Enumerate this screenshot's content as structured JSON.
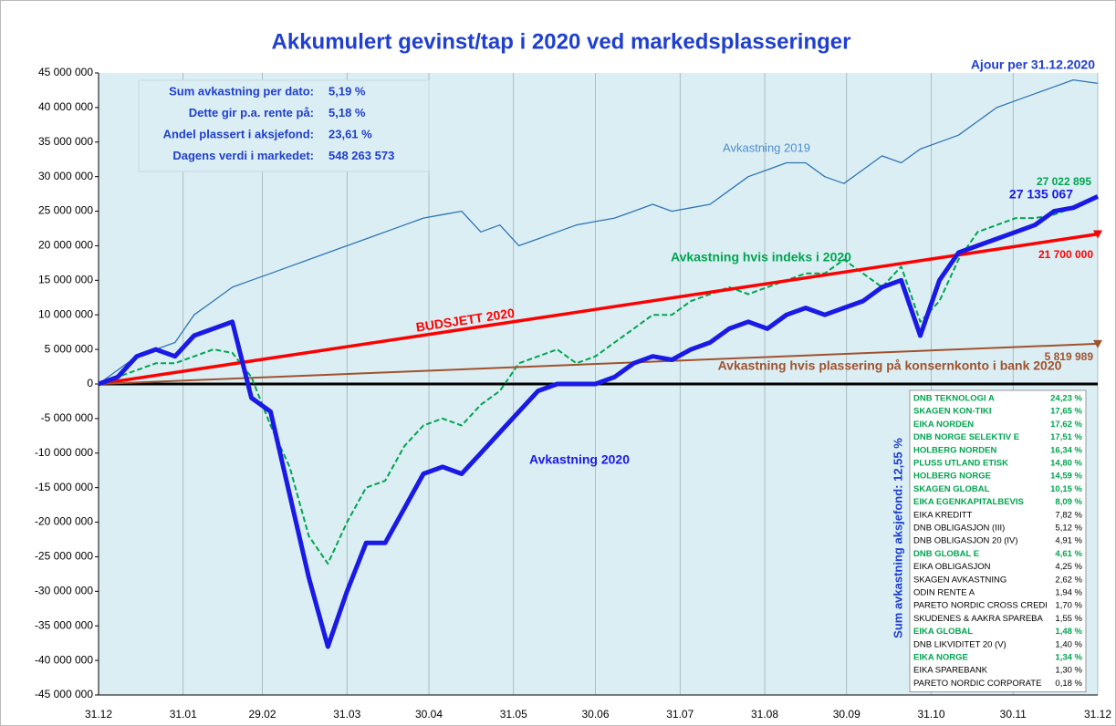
{
  "chart_data": {
    "type": "line",
    "title": "Akkumulert gevinst/tap i 2020 ved markedsplasseringer",
    "subtitle": "Ajour per 31.12.2020",
    "xlim": [
      0,
      366
    ],
    "xticks": [
      {
        "value": 0,
        "label": "31.12"
      },
      {
        "value": 31,
        "label": "31.01"
      },
      {
        "value": 60,
        "label": "29.02"
      },
      {
        "value": 91,
        "label": "31.03"
      },
      {
        "value": 121,
        "label": "30.04"
      },
      {
        "value": 152,
        "label": "31.05"
      },
      {
        "value": 182,
        "label": "30.06"
      },
      {
        "value": 213,
        "label": "31.07"
      },
      {
        "value": 244,
        "label": "31.08"
      },
      {
        "value": 274,
        "label": "30.09"
      },
      {
        "value": 305,
        "label": "31.10"
      },
      {
        "value": 335,
        "label": "30.11"
      },
      {
        "value": 366,
        "label": "31.12"
      }
    ],
    "ylim": [
      -45000000,
      45000000
    ],
    "yticks": [
      {
        "value": -45000000,
        "label": "-45 000 000"
      },
      {
        "value": -40000000,
        "label": "-40 000 000"
      },
      {
        "value": -35000000,
        "label": "-35 000 000"
      },
      {
        "value": -30000000,
        "label": "-30 000 000"
      },
      {
        "value": -25000000,
        "label": "-25 000 000"
      },
      {
        "value": -20000000,
        "label": "-20 000 000"
      },
      {
        "value": -15000000,
        "label": "-15 000 000"
      },
      {
        "value": -10000000,
        "label": "-10 000 000"
      },
      {
        "value": -5000000,
        "label": "-5 000 000"
      },
      0,
      {
        "value": 5000000,
        "label": "5 000 000"
      },
      {
        "value": 10000000,
        "label": "10 000 000"
      },
      {
        "value": 15000000,
        "label": "15 000 000"
      },
      {
        "value": 20000000,
        "label": "20 000 000"
      },
      {
        "value": 25000000,
        "label": "25 000 000"
      },
      {
        "value": 30000000,
        "label": "30 000 000"
      },
      {
        "value": 35000000,
        "label": "35 000 000"
      },
      {
        "value": 40000000,
        "label": "40 000 000"
      },
      {
        "value": 45000000,
        "label": "45 000 000"
      }
    ],
    "grid": "x",
    "x": [
      0,
      7,
      14,
      21,
      28,
      35,
      42,
      49,
      56,
      63,
      70,
      77,
      84,
      91,
      98,
      105,
      112,
      119,
      126,
      133,
      140,
      147,
      154,
      161,
      168,
      175,
      182,
      189,
      196,
      203,
      210,
      217,
      224,
      231,
      238,
      245,
      252,
      259,
      266,
      273,
      280,
      287,
      294,
      301,
      308,
      315,
      322,
      329,
      336,
      343,
      350,
      357,
      366
    ],
    "series": [
      {
        "name": "Avkastning 2019",
        "color": "#2e75b6",
        "values": [
          0,
          2000000,
          4000000,
          5000000,
          6000000,
          10000000,
          12000000,
          14000000,
          15000000,
          16000000,
          17000000,
          18000000,
          19000000,
          20000000,
          21000000,
          22000000,
          23000000,
          24000000,
          24500000,
          25000000,
          22000000,
          23000000,
          20000000,
          21000000,
          22000000,
          23000000,
          23500000,
          24000000,
          25000000,
          26000000,
          25000000,
          25500000,
          26000000,
          28000000,
          30000000,
          31000000,
          32000000,
          32000000,
          30000000,
          29000000,
          31000000,
          33000000,
          32000000,
          34000000,
          35000000,
          36000000,
          38000000,
          40000000,
          41000000,
          42000000,
          43000000,
          44000000,
          43500000
        ]
      },
      {
        "name": "Avkastning hvis indeks i 2020",
        "color": "#00a550",
        "dashed": true,
        "end_label": "27 022 895",
        "values": [
          0,
          1000000,
          2000000,
          3000000,
          3000000,
          4000000,
          5000000,
          4500000,
          1000000,
          -6000000,
          -12000000,
          -22000000,
          -26000000,
          -20000000,
          -15000000,
          -14000000,
          -9000000,
          -6000000,
          -5000000,
          -6000000,
          -3000000,
          -1000000,
          3000000,
          4000000,
          5000000,
          3000000,
          4000000,
          6000000,
          8000000,
          10000000,
          10000000,
          12000000,
          13000000,
          14000000,
          13000000,
          14000000,
          15000000,
          16000000,
          16000000,
          18000000,
          16000000,
          14000000,
          17000000,
          9000000,
          12000000,
          18000000,
          22000000,
          23000000,
          24000000,
          24000000,
          24500000,
          25500000,
          27022895
        ]
      },
      {
        "name": "BUDSJETT 2020",
        "color": "#ff0000",
        "x": [
          0,
          366
        ],
        "values": [
          0,
          21700000
        ],
        "end_label": "21 700 000",
        "marker": "triangle"
      },
      {
        "name": "Avkastning hvis plassering på konsernkonto i bank 2020",
        "color": "#a0522d",
        "x": [
          0,
          366
        ],
        "values": [
          0,
          5819989
        ],
        "end_label": "5 819 989",
        "marker": "triangle"
      },
      {
        "name": "Avkastning 2020",
        "color": "#1a1ae6",
        "end_label": "27 135 067",
        "values": [
          0,
          1000000,
          4000000,
          5000000,
          4000000,
          7000000,
          8000000,
          9000000,
          -2000000,
          -4000000,
          -16000000,
          -28000000,
          -38000000,
          -30000000,
          -23000000,
          -23000000,
          -18000000,
          -13000000,
          -12000000,
          -13000000,
          -10000000,
          -7000000,
          -4000000,
          -1000000,
          0,
          0,
          0,
          1000000,
          3000000,
          4000000,
          3500000,
          5000000,
          6000000,
          8000000,
          9000000,
          8000000,
          10000000,
          11000000,
          10000000,
          11000000,
          12000000,
          14000000,
          15000000,
          7000000,
          15000000,
          19000000,
          20000000,
          21000000,
          22000000,
          23000000,
          25000000,
          25500000,
          27135067
        ]
      }
    ]
  },
  "info_box": [
    {
      "label": "Sum avkastning per dato:",
      "value": "5,19 %"
    },
    {
      "label": "Dette gir p.a. rente på:",
      "value": "5,18 %"
    },
    {
      "label": "Andel plassert i aksjefond:",
      "value": "23,61 %"
    },
    {
      "label": "Dagens verdi i markedet:",
      "value": "548 263 573"
    }
  ],
  "fund_table": {
    "title": "Sum avkastning aksjefond:   12,55 %",
    "rows": [
      {
        "name": "DNB TEKNOLOGI A",
        "value": "24,23 %",
        "highlight": true
      },
      {
        "name": "SKAGEN KON-TIKI",
        "value": "17,65 %",
        "highlight": true
      },
      {
        "name": "EIKA NORDEN",
        "value": "17,62 %",
        "highlight": true
      },
      {
        "name": "DNB NORGE SELEKTIV E",
        "value": "17,51 %",
        "highlight": true
      },
      {
        "name": "HOLBERG NORDEN",
        "value": "16,34 %",
        "highlight": true
      },
      {
        "name": "PLUSS UTLAND ETISK",
        "value": "14,80 %",
        "highlight": true
      },
      {
        "name": "HOLBERG NORGE",
        "value": "14,59 %",
        "highlight": true
      },
      {
        "name": "SKAGEN GLOBAL",
        "value": "10,15 %",
        "highlight": true
      },
      {
        "name": "EIKA EGENKAPITALBEVIS",
        "value": "8,09 %",
        "highlight": true
      },
      {
        "name": "EIKA KREDITT",
        "value": "7,82 %",
        "highlight": false
      },
      {
        "name": "DNB OBLIGASJON (III)",
        "value": "5,12 %",
        "highlight": false
      },
      {
        "name": "DNB OBLIGASJON 20 (IV)",
        "value": "4,91 %",
        "highlight": false
      },
      {
        "name": "DNB GLOBAL E",
        "value": "4,61 %",
        "highlight": true
      },
      {
        "name": "EIKA OBLIGASJON",
        "value": "4,25 %",
        "highlight": false
      },
      {
        "name": "SKAGEN AVKASTNING",
        "value": "2,62 %",
        "highlight": false
      },
      {
        "name": "ODIN RENTE A",
        "value": "1,94 %",
        "highlight": false
      },
      {
        "name": "PARETO NORDIC CROSS CREDI",
        "value": "1,70 %",
        "highlight": false
      },
      {
        "name": "SKUDENES & AAKRA SPAREBA",
        "value": "1,55 %",
        "highlight": false
      },
      {
        "name": "EIKA GLOBAL",
        "value": "1,48 %",
        "highlight": true
      },
      {
        "name": "DNB LIKVIDITET 20 (V)",
        "value": "1,40 %",
        "highlight": false
      },
      {
        "name": "EIKA NORGE",
        "value": "1,34 %",
        "highlight": true
      },
      {
        "name": "EIKA SPAREBANK",
        "value": "1,30 %",
        "highlight": false
      },
      {
        "name": "PARETO NORDIC CORPORATE",
        "value": "0,18 %",
        "highlight": false
      }
    ]
  }
}
